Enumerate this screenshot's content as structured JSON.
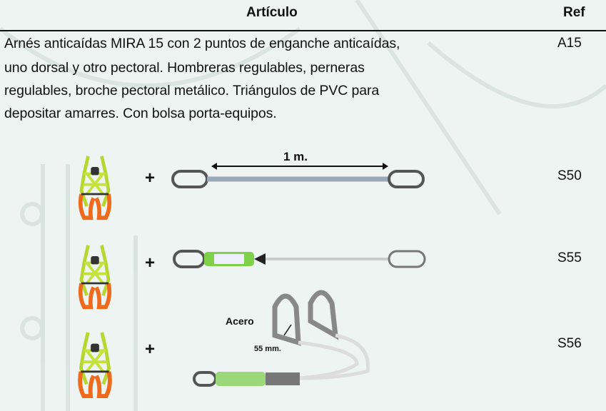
{
  "header": {
    "article": "Artículo",
    "ref": "Ref"
  },
  "rows": [
    {
      "description": [
        "Arnés anticaídas MIRA 15 con 2 puntos de enganche anticaídas,",
        "uno dorsal y otro pectoral. Hombreras regulables, perneras",
        "regulables, broche pectoral metálico. Triángulos de PVC para",
        "depositar amarres. Con bolsa porta-equipos."
      ],
      "ref": "A15"
    },
    {
      "connector": "+",
      "length_label": "1 m.",
      "ref": "S50"
    },
    {
      "connector": "+",
      "ref": "S55"
    },
    {
      "connector": "+",
      "material_label": "Acero",
      "opening_label": "55 mm.",
      "ref": "S56"
    }
  ]
}
